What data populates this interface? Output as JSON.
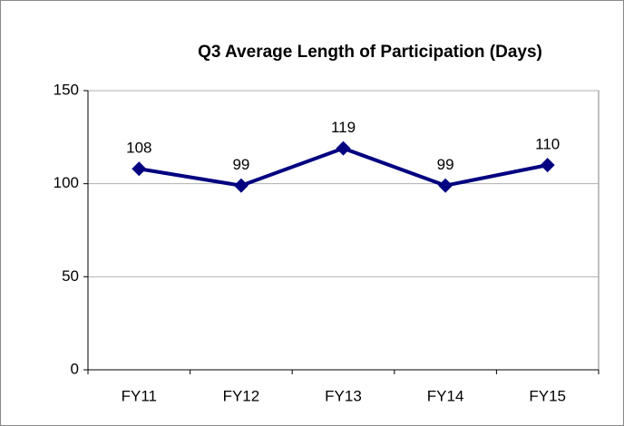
{
  "chart_data": {
    "type": "line",
    "title": "Q3 Average Length of Participation (Days)",
    "categories": [
      "FY11",
      "FY12",
      "FY13",
      "FY14",
      "FY15"
    ],
    "series": [
      {
        "name": "Q3",
        "color": "#000080",
        "values": [
          108,
          99,
          119,
          99,
          110
        ]
      }
    ],
    "ylim": [
      0,
      150
    ],
    "yticks": [
      0,
      50,
      100,
      150
    ],
    "grid": true
  }
}
